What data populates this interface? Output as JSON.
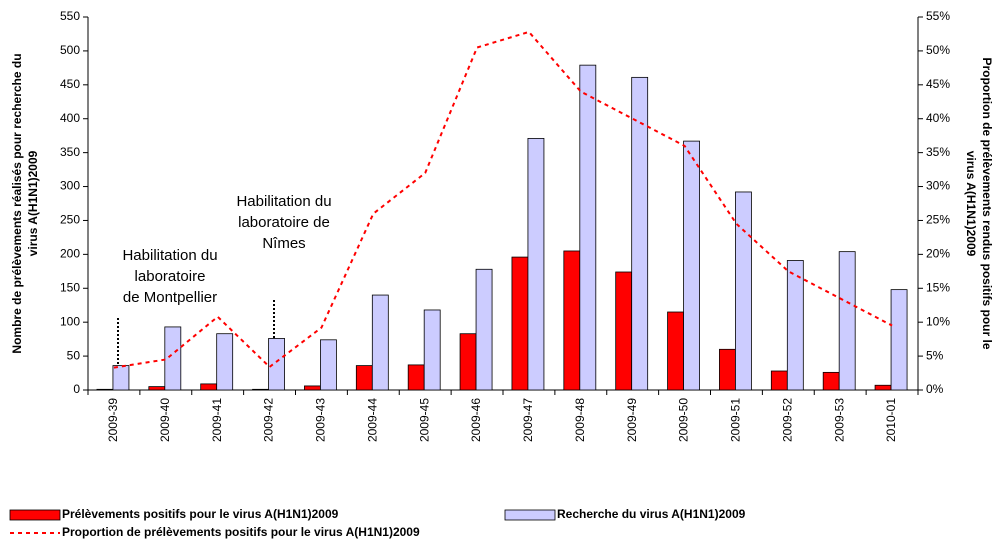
{
  "chart_data": {
    "type": "bar",
    "categories": [
      "2009-39",
      "2009-40",
      "2009-41",
      "2009-42",
      "2009-43",
      "2009-44",
      "2009-45",
      "2009-46",
      "2009-47",
      "2009-48",
      "2009-49",
      "2009-50",
      "2009-51",
      "2009-52",
      "2009-53",
      "2010-01"
    ],
    "series": [
      {
        "name": "Prélèvements positifs pour le virus A(H1N1)2009",
        "color": "#ff0000",
        "type": "bar",
        "values": [
          1,
          5,
          9,
          1,
          6,
          36,
          37,
          83,
          196,
          205,
          174,
          115,
          60,
          28,
          26,
          7
        ]
      },
      {
        "name": "Recherche du virus A(H1N1)2009",
        "color": "#ccccff",
        "type": "bar",
        "values": [
          36,
          93,
          83,
          76,
          74,
          140,
          118,
          178,
          371,
          479,
          461,
          367,
          292,
          191,
          204,
          148
        ]
      },
      {
        "name": "Proportion de prélèvements positifs pour le virus A(H1N1)2009",
        "color": "#ff0000",
        "type": "line",
        "axis": "y2",
        "values": [
          3.3,
          4.5,
          10.8,
          3.4,
          9.2,
          26,
          32,
          50.5,
          52.8,
          44,
          40,
          36,
          24.5,
          17.5,
          13.5,
          9.5
        ]
      }
    ],
    "ylabel": [
      "Nombre de prélèvements réalisés pour recherche du",
      "virus A(H1N1)2009"
    ],
    "y2label": [
      "Proportion de prélèvements rendus positifs pour le",
      "virus A(H1N1)2009"
    ],
    "ylim": [
      0,
      550
    ],
    "yticks": [
      0,
      50,
      100,
      150,
      200,
      250,
      300,
      350,
      400,
      450,
      500,
      550
    ],
    "y2lim": [
      0,
      55
    ],
    "y2ticks": [
      {
        "value": 0,
        "label": "0%"
      },
      {
        "value": 5,
        "label": "5%"
      },
      {
        "value": 10,
        "label": "10%"
      },
      {
        "value": 15,
        "label": "15%"
      },
      {
        "value": 20,
        "label": "20%"
      },
      {
        "value": 25,
        "label": "25%"
      },
      {
        "value": 30,
        "label": "30%"
      },
      {
        "value": 35,
        "label": "35%"
      },
      {
        "value": 40,
        "label": "40%"
      },
      {
        "value": 45,
        "label": "45%"
      },
      {
        "value": 50,
        "label": "50%"
      },
      {
        "value": 55,
        "label": "55%"
      }
    ],
    "annotations": [
      {
        "text": [
          "Habilitation du",
          "laboratoire",
          "de Montpellier"
        ]
      },
      {
        "text": [
          "Habilitation du",
          "laboratoire de",
          "Nîmes"
        ]
      }
    ]
  }
}
